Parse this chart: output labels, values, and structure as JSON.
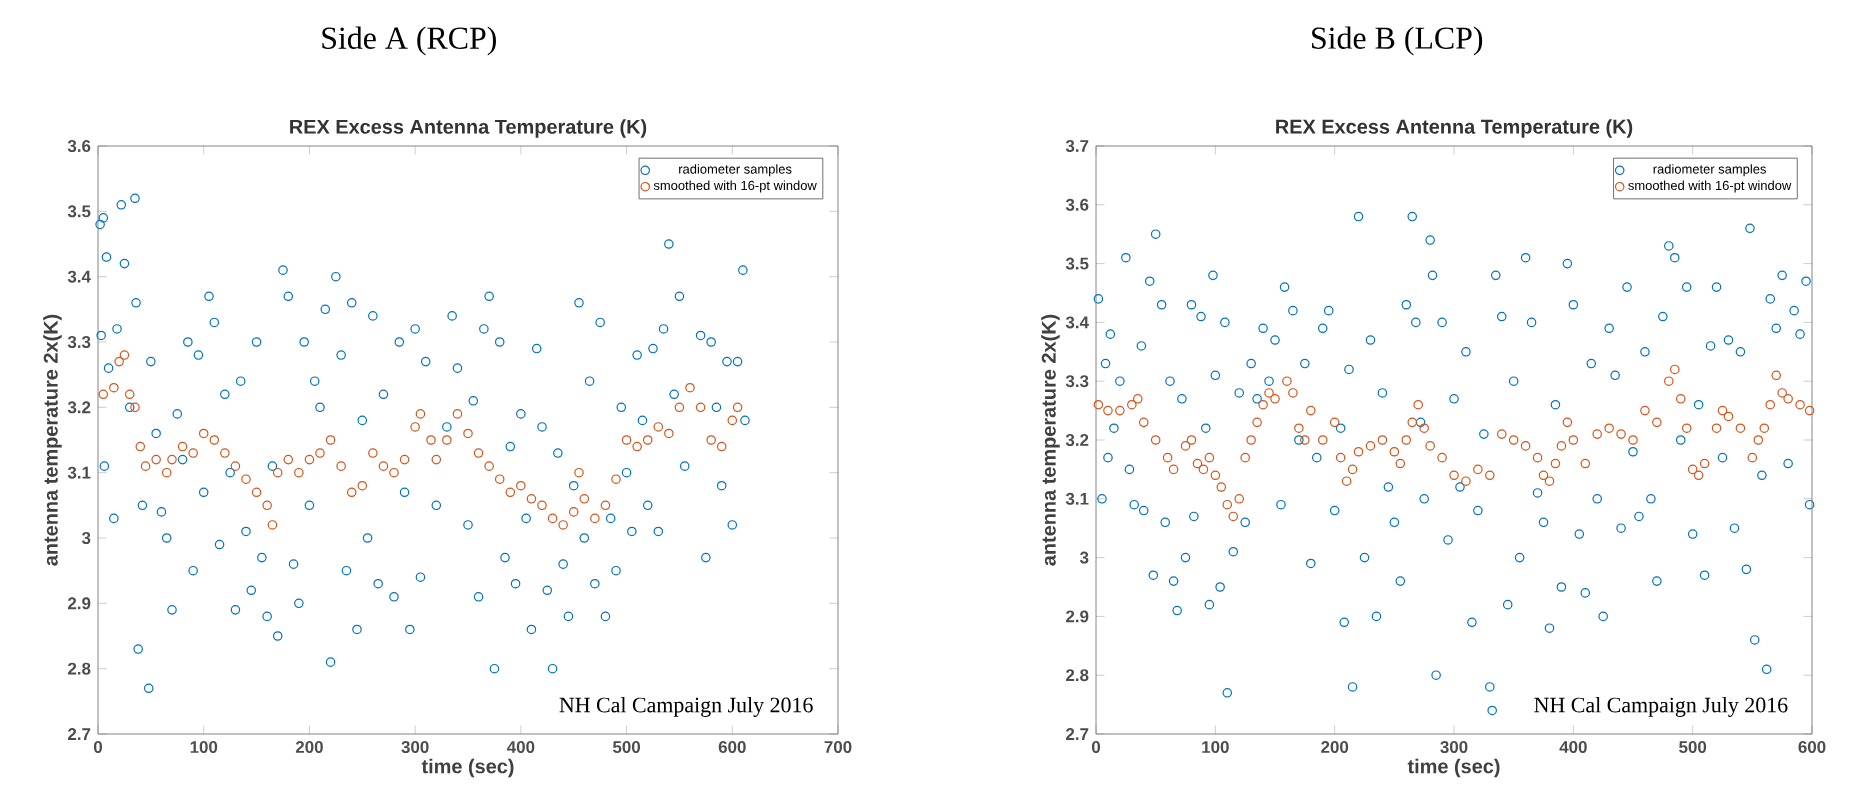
{
  "chart_data": [
    {
      "type": "scatter",
      "title": "Side A (RCP)",
      "subtitle": "REX Excess Antenna Temperature (K)",
      "xlabel": "time (sec)",
      "ylabel": "antenna temperature 2x(K)",
      "annotations": [
        "NH Cal Campaign July 2016"
      ],
      "xlim": [
        0,
        700
      ],
      "ylim": [
        2.7,
        3.6
      ],
      "xticks": [
        0,
        100,
        200,
        300,
        400,
        500,
        600,
        700
      ],
      "yticks": [
        2.7,
        2.8,
        2.9,
        3,
        3.1,
        3.2,
        3.3,
        3.4,
        3.5,
        3.6
      ],
      "legend": "top right",
      "marker": "circle",
      "grid": false,
      "series": [
        {
          "name": "radiometer samples",
          "color": "#0072bd",
          "x": [
            2,
            5,
            8,
            3,
            6,
            10,
            15,
            18,
            22,
            25,
            30,
            35,
            36,
            38,
            42,
            48,
            50,
            55,
            60,
            65,
            70,
            75,
            80,
            85,
            90,
            95,
            100,
            105,
            110,
            115,
            120,
            125,
            130,
            135,
            140,
            145,
            150,
            155,
            160,
            165,
            170,
            175,
            180,
            185,
            190,
            195,
            200,
            205,
            210,
            215,
            220,
            225,
            230,
            235,
            240,
            245,
            250,
            255,
            260,
            265,
            270,
            280,
            285,
            290,
            295,
            300,
            305,
            310,
            320,
            330,
            335,
            340,
            350,
            355,
            360,
            365,
            370,
            375,
            380,
            385,
            390,
            395,
            400,
            405,
            410,
            415,
            420,
            425,
            430,
            435,
            440,
            445,
            450,
            455,
            460,
            465,
            470,
            475,
            480,
            485,
            490,
            495,
            500,
            505,
            510,
            515,
            520,
            525,
            530,
            535,
            540,
            545,
            550,
            555,
            570,
            575,
            580,
            585,
            590,
            595,
            600,
            605,
            610,
            612
          ],
          "values": [
            3.48,
            3.49,
            3.43,
            3.31,
            3.11,
            3.26,
            3.03,
            3.32,
            3.51,
            3.42,
            3.2,
            3.52,
            3.36,
            2.83,
            3.05,
            2.77,
            3.27,
            3.16,
            3.04,
            3.0,
            2.89,
            3.19,
            3.12,
            3.3,
            2.95,
            3.28,
            3.07,
            3.37,
            3.33,
            2.99,
            3.22,
            3.1,
            2.89,
            3.24,
            3.01,
            2.92,
            3.3,
            2.97,
            2.88,
            3.11,
            2.85,
            3.41,
            3.37,
            2.96,
            2.9,
            3.3,
            3.05,
            3.24,
            3.2,
            3.35,
            2.81,
            3.4,
            3.28,
            2.95,
            3.36,
            2.86,
            3.18,
            3.0,
            3.34,
            2.93,
            3.22,
            2.91,
            3.3,
            3.07,
            2.86,
            3.32,
            2.94,
            3.27,
            3.05,
            3.17,
            3.34,
            3.26,
            3.02,
            3.21,
            2.91,
            3.32,
            3.37,
            2.8,
            3.3,
            2.97,
            3.14,
            2.93,
            3.19,
            3.03,
            2.86,
            3.29,
            3.17,
            2.92,
            2.8,
            3.13,
            2.96,
            2.88,
            3.08,
            3.36,
            3.0,
            3.24,
            2.93,
            3.33,
            2.88,
            3.03,
            2.95,
            3.2,
            3.1,
            3.01,
            3.28,
            3.18,
            3.05,
            3.29,
            3.01,
            3.32,
            3.45,
            3.22,
            3.37,
            3.11,
            3.31,
            2.97,
            3.3,
            3.2,
            3.08,
            3.27,
            3.02,
            3.27,
            3.41,
            3.18
          ]
        },
        {
          "name": "smoothed with 16-pt window",
          "color": "#d95319",
          "x": [
            5,
            15,
            20,
            25,
            30,
            35,
            40,
            45,
            55,
            65,
            70,
            80,
            90,
            100,
            110,
            120,
            130,
            140,
            150,
            160,
            165,
            170,
            180,
            190,
            200,
            210,
            220,
            230,
            240,
            250,
            260,
            270,
            280,
            290,
            300,
            305,
            315,
            320,
            330,
            340,
            350,
            360,
            370,
            380,
            390,
            400,
            410,
            420,
            430,
            440,
            450,
            455,
            460,
            470,
            480,
            490,
            500,
            510,
            520,
            530,
            540,
            550,
            560,
            570,
            580,
            590,
            600,
            605
          ],
          "values": [
            3.22,
            3.23,
            3.27,
            3.28,
            3.22,
            3.2,
            3.14,
            3.11,
            3.12,
            3.1,
            3.12,
            3.14,
            3.13,
            3.16,
            3.15,
            3.13,
            3.11,
            3.09,
            3.07,
            3.05,
            3.02,
            3.1,
            3.12,
            3.1,
            3.12,
            3.13,
            3.15,
            3.11,
            3.07,
            3.08,
            3.13,
            3.11,
            3.1,
            3.12,
            3.17,
            3.19,
            3.15,
            3.12,
            3.15,
            3.19,
            3.16,
            3.13,
            3.11,
            3.09,
            3.07,
            3.08,
            3.06,
            3.05,
            3.03,
            3.02,
            3.04,
            3.1,
            3.06,
            3.03,
            3.05,
            3.09,
            3.15,
            3.14,
            3.15,
            3.17,
            3.16,
            3.2,
            3.23,
            3.2,
            3.15,
            3.14,
            3.18,
            3.2
          ]
        }
      ]
    },
    {
      "type": "scatter",
      "title": "Side B (LCP)",
      "subtitle": "REX Excess Antenna Temperature (K)",
      "xlabel": "time (sec)",
      "ylabel": "antenna temperature 2x(K)",
      "annotations": [
        "NH Cal Campaign July 2016"
      ],
      "xlim": [
        0,
        600
      ],
      "ylim": [
        2.7,
        3.7
      ],
      "xticks": [
        0,
        100,
        200,
        300,
        400,
        500,
        600
      ],
      "yticks": [
        2.7,
        2.8,
        2.9,
        3,
        3.1,
        3.2,
        3.3,
        3.4,
        3.5,
        3.6,
        3.7
      ],
      "legend": "top right",
      "marker": "circle",
      "grid": false,
      "series": [
        {
          "name": "radiometer samples",
          "color": "#0072bd",
          "x": [
            2,
            5,
            8,
            10,
            12,
            15,
            20,
            25,
            28,
            32,
            38,
            40,
            45,
            48,
            50,
            55,
            58,
            62,
            65,
            68,
            72,
            75,
            80,
            82,
            88,
            92,
            95,
            98,
            100,
            104,
            108,
            110,
            115,
            120,
            125,
            130,
            135,
            140,
            145,
            150,
            155,
            158,
            165,
            170,
            175,
            180,
            185,
            190,
            195,
            200,
            205,
            208,
            212,
            215,
            220,
            225,
            230,
            235,
            240,
            245,
            250,
            255,
            260,
            265,
            268,
            272,
            275,
            280,
            282,
            285,
            290,
            295,
            300,
            305,
            310,
            315,
            320,
            325,
            330,
            332,
            335,
            340,
            345,
            350,
            355,
            360,
            365,
            370,
            375,
            380,
            385,
            390,
            395,
            400,
            405,
            410,
            415,
            420,
            425,
            430,
            435,
            440,
            445,
            450,
            455,
            460,
            465,
            470,
            475,
            480,
            485,
            490,
            495,
            500,
            505,
            510,
            515,
            520,
            525,
            530,
            535,
            540,
            545,
            548,
            552,
            558,
            562,
            565,
            570,
            575,
            580,
            585,
            590,
            595,
            598
          ],
          "values": [
            3.44,
            3.1,
            3.33,
            3.17,
            3.38,
            3.22,
            3.3,
            3.51,
            3.15,
            3.09,
            3.36,
            3.08,
            3.47,
            2.97,
            3.55,
            3.43,
            3.06,
            3.3,
            2.96,
            2.91,
            3.27,
            3.0,
            3.43,
            3.07,
            3.41,
            3.22,
            2.92,
            3.48,
            3.31,
            2.95,
            3.4,
            2.77,
            3.01,
            3.28,
            3.06,
            3.33,
            3.27,
            3.39,
            3.3,
            3.37,
            3.09,
            3.46,
            3.42,
            3.2,
            3.33,
            2.99,
            3.17,
            3.39,
            3.42,
            3.08,
            3.22,
            2.89,
            3.32,
            2.78,
            3.58,
            3.0,
            3.37,
            2.9,
            3.28,
            3.12,
            3.06,
            2.96,
            3.43,
            3.58,
            3.4,
            3.23,
            3.1,
            3.54,
            3.48,
            2.8,
            3.4,
            3.03,
            3.27,
            3.12,
            3.35,
            2.89,
            3.08,
            3.21,
            2.78,
            2.74,
            3.48,
            3.41,
            2.92,
            3.3,
            3.0,
            3.51,
            3.4,
            3.11,
            3.06,
            2.88,
            3.26,
            2.95,
            3.5,
            3.43,
            3.04,
            2.94,
            3.33,
            3.1,
            2.9,
            3.39,
            3.31,
            3.05,
            3.46,
            3.18,
            3.07,
            3.35,
            3.1,
            2.96,
            3.41,
            3.53,
            3.51,
            3.2,
            3.46,
            3.04,
            3.26,
            2.97,
            3.36,
            3.46,
            3.17,
            3.37,
            3.05,
            3.35,
            2.98,
            3.56,
            2.86,
            3.14,
            2.81,
            3.44,
            3.39,
            3.48,
            3.16,
            3.42,
            3.38,
            3.47,
            3.09
          ]
        },
        {
          "name": "smoothed with 16-pt window",
          "color": "#d95319",
          "x": [
            2,
            10,
            20,
            30,
            35,
            40,
            50,
            60,
            65,
            75,
            80,
            85,
            90,
            95,
            100,
            105,
            110,
            115,
            120,
            125,
            130,
            135,
            140,
            145,
            150,
            160,
            165,
            170,
            175,
            180,
            190,
            200,
            205,
            210,
            215,
            220,
            230,
            240,
            250,
            255,
            260,
            265,
            270,
            275,
            280,
            290,
            300,
            310,
            320,
            330,
            340,
            350,
            360,
            370,
            375,
            380,
            385,
            390,
            395,
            400,
            410,
            420,
            430,
            440,
            450,
            460,
            470,
            480,
            485,
            490,
            495,
            500,
            505,
            510,
            520,
            525,
            530,
            540,
            550,
            555,
            560,
            565,
            570,
            575,
            580,
            590,
            598
          ],
          "values": [
            3.26,
            3.25,
            3.25,
            3.26,
            3.27,
            3.23,
            3.2,
            3.17,
            3.15,
            3.19,
            3.2,
            3.16,
            3.15,
            3.17,
            3.14,
            3.12,
            3.09,
            3.07,
            3.1,
            3.17,
            3.2,
            3.23,
            3.26,
            3.28,
            3.27,
            3.3,
            3.28,
            3.22,
            3.2,
            3.25,
            3.2,
            3.23,
            3.17,
            3.13,
            3.15,
            3.18,
            3.19,
            3.2,
            3.18,
            3.16,
            3.2,
            3.23,
            3.26,
            3.22,
            3.19,
            3.17,
            3.14,
            3.13,
            3.15,
            3.14,
            3.21,
            3.2,
            3.19,
            3.17,
            3.14,
            3.13,
            3.16,
            3.19,
            3.23,
            3.2,
            3.16,
            3.21,
            3.22,
            3.21,
            3.2,
            3.25,
            3.23,
            3.3,
            3.32,
            3.27,
            3.22,
            3.15,
            3.14,
            3.16,
            3.22,
            3.25,
            3.24,
            3.22,
            3.17,
            3.2,
            3.22,
            3.26,
            3.31,
            3.28,
            3.27,
            3.26,
            3.25
          ]
        }
      ]
    }
  ]
}
